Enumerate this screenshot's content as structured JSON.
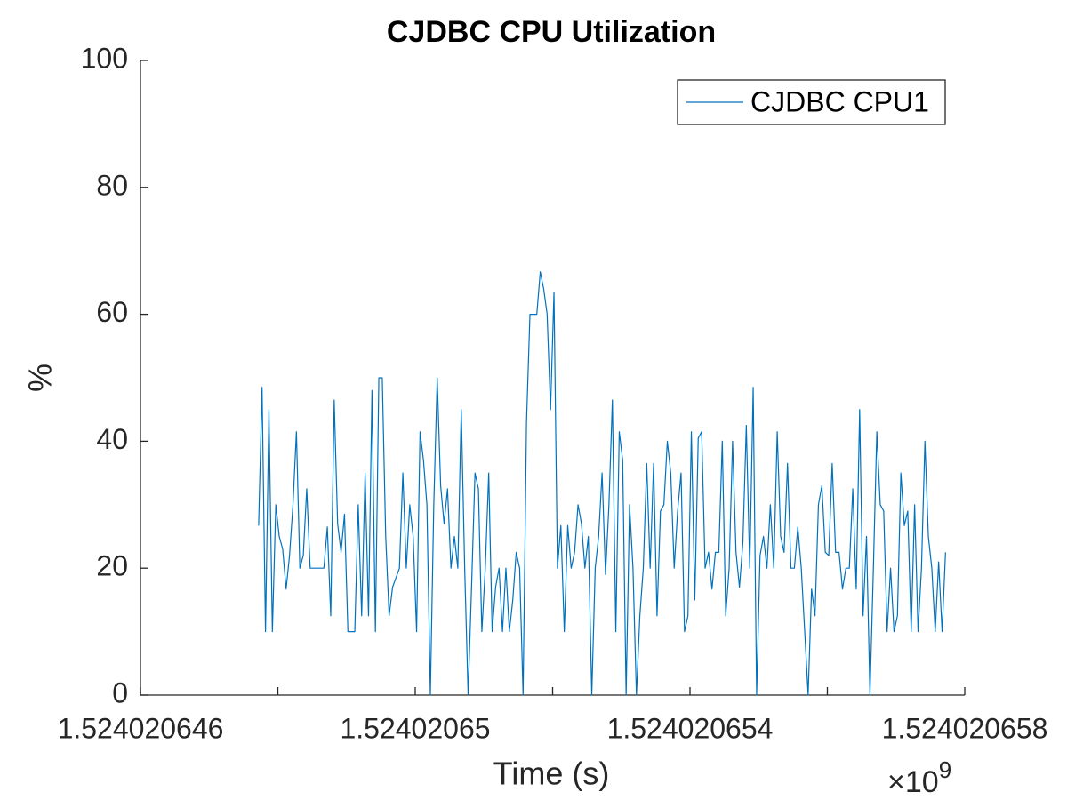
{
  "chart_data": {
    "type": "line",
    "title": "CJDBC CPU Utilization",
    "x_label": "Time (s)",
    "y_label": "%",
    "x_multiplier": {
      "base": "×10",
      "exponent": "9"
    },
    "xlim": [
      1524020646,
      1524020658
    ],
    "xticks": [
      {
        "value": 1524020646,
        "label": "1.524020646"
      },
      {
        "value": 1524020648,
        "label": null
      },
      {
        "value": 1524020650,
        "label": "1.52402065"
      },
      {
        "value": 1524020652,
        "label": null
      },
      {
        "value": 1524020654,
        "label": "1.524020654"
      },
      {
        "value": 1524020656,
        "label": null
      },
      {
        "value": 1524020658,
        "label": "1.524020658"
      }
    ],
    "ylim": [
      0,
      100
    ],
    "yticks": [
      0,
      20,
      40,
      60,
      80,
      100
    ],
    "grid": false,
    "legend": "top-right",
    "x": [
      1524020647.72,
      1524020647.77,
      1524020647.82,
      1524020647.87,
      1524020647.92,
      1524020647.97,
      1524020648.02,
      1524020648.07,
      1524020648.12,
      1524020648.17,
      1524020648.22,
      1524020648.27,
      1524020648.32,
      1524020648.37,
      1524020648.42,
      1524020648.47,
      1524020648.52,
      1524020648.57,
      1524020648.62,
      1524020648.67,
      1524020648.72,
      1524020648.77,
      1524020648.82,
      1524020648.87,
      1524020648.92,
      1524020648.97,
      1524020649.02,
      1524020649.07,
      1524020649.12,
      1524020649.17,
      1524020649.22,
      1524020649.27,
      1524020649.32,
      1524020649.37,
      1524020649.42,
      1524020649.47,
      1524020649.52,
      1524020649.57,
      1524020649.62,
      1524020649.67,
      1524020649.72,
      1524020649.77,
      1524020649.82,
      1524020649.87,
      1524020649.92,
      1524020649.97,
      1524020650.02,
      1524020650.07,
      1524020650.12,
      1524020650.17,
      1524020650.22,
      1524020650.27,
      1524020650.32,
      1524020650.37,
      1524020650.42,
      1524020650.47,
      1524020650.52,
      1524020650.57,
      1524020650.62,
      1524020650.67,
      1524020650.72,
      1524020650.77,
      1524020650.82,
      1524020650.87,
      1524020650.92,
      1524020650.97,
      1524020651.02,
      1524020651.07,
      1524020651.12,
      1524020651.17,
      1524020651.22,
      1524020651.27,
      1524020651.32,
      1524020651.37,
      1524020651.42,
      1524020651.47,
      1524020651.52,
      1524020651.57,
      1524020651.62,
      1524020651.67,
      1524020651.72,
      1524020651.77,
      1524020651.82,
      1524020651.87,
      1524020651.92,
      1524020651.97,
      1524020652.02,
      1524020652.07,
      1524020652.12,
      1524020652.17,
      1524020652.22,
      1524020652.27,
      1524020652.32,
      1524020652.37,
      1524020652.42,
      1524020652.47,
      1524020652.52,
      1524020652.57,
      1524020652.62,
      1524020652.67,
      1524020652.72,
      1524020652.77,
      1524020652.82,
      1524020652.87,
      1524020652.92,
      1524020652.97,
      1524020653.02,
      1524020653.07,
      1524020653.12,
      1524020653.17,
      1524020653.22,
      1524020653.27,
      1524020653.32,
      1524020653.37,
      1524020653.42,
      1524020653.47,
      1524020653.52,
      1524020653.57,
      1524020653.62,
      1524020653.67,
      1524020653.72,
      1524020653.77,
      1524020653.82,
      1524020653.87,
      1524020653.92,
      1524020653.97,
      1524020654.02,
      1524020654.07,
      1524020654.12,
      1524020654.17,
      1524020654.22,
      1524020654.27,
      1524020654.32,
      1524020654.37,
      1524020654.42,
      1524020654.47,
      1524020654.52,
      1524020654.57,
      1524020654.62,
      1524020654.67,
      1524020654.72,
      1524020654.77,
      1524020654.82,
      1524020654.87,
      1524020654.92,
      1524020654.97,
      1524020655.02,
      1524020655.07,
      1524020655.12,
      1524020655.17,
      1524020655.22,
      1524020655.27,
      1524020655.32,
      1524020655.37,
      1524020655.42,
      1524020655.47,
      1524020655.52,
      1524020655.57,
      1524020655.62,
      1524020655.67,
      1524020655.72,
      1524020655.77,
      1524020655.82,
      1524020655.87,
      1524020655.92,
      1524020655.97,
      1524020656.02,
      1524020656.07,
      1524020656.12,
      1524020656.17,
      1524020656.22,
      1524020656.27,
      1524020656.32,
      1524020656.37,
      1524020656.42,
      1524020656.47,
      1524020656.52,
      1524020656.57,
      1524020656.62,
      1524020656.67,
      1524020656.72,
      1524020656.77,
      1524020656.82,
      1524020656.87,
      1524020656.92,
      1524020656.97,
      1524020657.02,
      1524020657.07,
      1524020657.12,
      1524020657.17,
      1524020657.22,
      1524020657.27,
      1524020657.32,
      1524020657.37,
      1524020657.42,
      1524020657.47,
      1524020657.52,
      1524020657.57,
      1524020657.62,
      1524020657.67,
      1524020657.72
    ],
    "series": [
      {
        "name": "CJDBC CPU1",
        "color": "#0072bd",
        "values": [
          26.7,
          48.5,
          10,
          45,
          10,
          30,
          25,
          23,
          16.7,
          22,
          30,
          41.5,
          20,
          22,
          32.5,
          20,
          20,
          20,
          20,
          20,
          26.5,
          12.5,
          46.5,
          27,
          22.5,
          28.5,
          10,
          10,
          10,
          30,
          12.5,
          35,
          12.5,
          48,
          10,
          50,
          50,
          25,
          12.5,
          17,
          18.5,
          20,
          35,
          20,
          30,
          25,
          10,
          41.5,
          37,
          30,
          0,
          30,
          50,
          33,
          27,
          32.5,
          20,
          25,
          20,
          45,
          20,
          0,
          17,
          35,
          32.5,
          10,
          20,
          35,
          10,
          17,
          20,
          10,
          20,
          10,
          15,
          22.5,
          20,
          0,
          43,
          60,
          60,
          60,
          66.7,
          64,
          60,
          45,
          63.5,
          20,
          26.7,
          10,
          26.7,
          20,
          22.5,
          30,
          27,
          20,
          25,
          0,
          20,
          25,
          35,
          19,
          30,
          46.5,
          10,
          41.5,
          37,
          0,
          30,
          20,
          0,
          12.5,
          20,
          36.5,
          20,
          36.5,
          12.5,
          29,
          30,
          40,
          35,
          20,
          29,
          35,
          10,
          12.5,
          41.5,
          15,
          40.5,
          41.5,
          20,
          22.5,
          16.7,
          22.5,
          22.5,
          40,
          12.5,
          20,
          40,
          22.5,
          17,
          24,
          42.5,
          20,
          48.5,
          0,
          22,
          25,
          20,
          30,
          20,
          41.5,
          25,
          22.5,
          36.5,
          20,
          20,
          26.5,
          20,
          10,
          0,
          16.7,
          12.5,
          30,
          33,
          22.5,
          22,
          36.5,
          22.5,
          22.5,
          16.7,
          20,
          20,
          32.5,
          16.7,
          45,
          12.5,
          25,
          0,
          20,
          41.5,
          30,
          29,
          10,
          20,
          10,
          12.5,
          35,
          26.7,
          29,
          10,
          30,
          10,
          20,
          40,
          25,
          20,
          10,
          21,
          10,
          22.5
        ]
      }
    ]
  }
}
